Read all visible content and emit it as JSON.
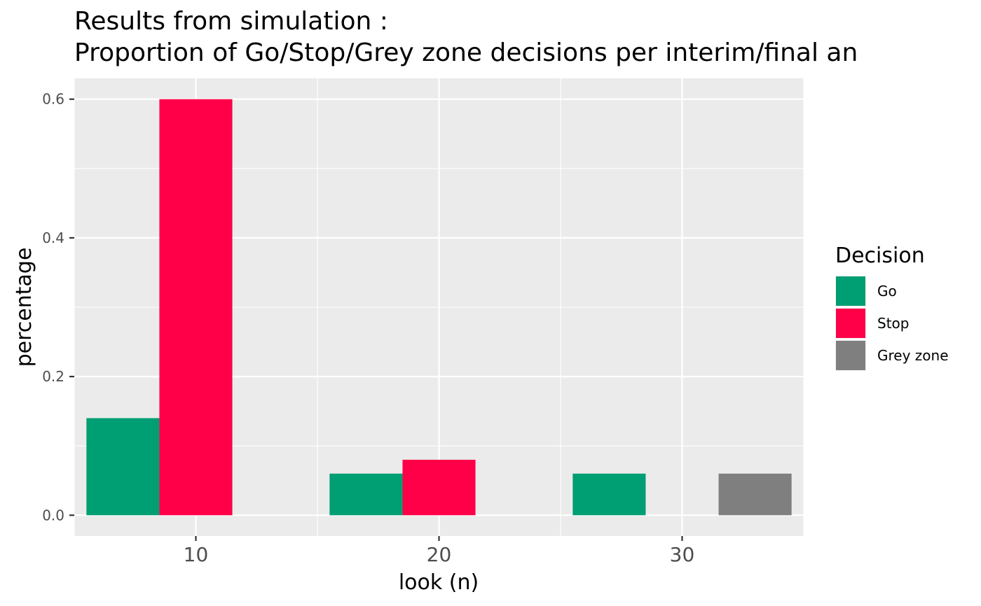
{
  "chart_data": {
    "type": "bar",
    "title_lines": [
      "Results from simulation :",
      "Proportion of Go/Stop/Grey zone decisions per interim/final an"
    ],
    "xlabel": "look (n)",
    "ylabel": "percentage",
    "x_ticks": [
      "10",
      "20",
      "30"
    ],
    "y_ticks": [
      "0.0",
      "0.2",
      "0.4",
      "0.6"
    ],
    "xlim": [
      5,
      35
    ],
    "ylim": [
      -0.03,
      0.63
    ],
    "grid": true,
    "legend_position": "right",
    "legend_title": "Decision",
    "categories": [
      "10",
      "20",
      "30"
    ],
    "category_x": [
      10,
      20,
      30
    ],
    "series": [
      {
        "name": "Go",
        "color": "#009E73",
        "values": [
          0.14,
          0.06,
          0.06
        ]
      },
      {
        "name": "Stop",
        "color": "#FF0048",
        "values": [
          0.6,
          0.08,
          null
        ]
      },
      {
        "name": "Grey zone",
        "color": "#7F7F7F",
        "values": [
          null,
          null,
          0.06
        ]
      }
    ]
  }
}
